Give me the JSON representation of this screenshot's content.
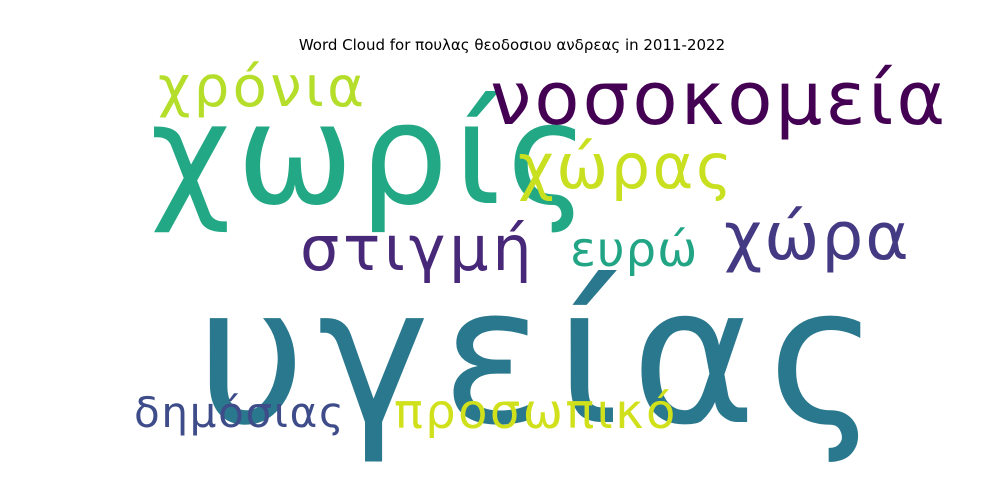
{
  "title": "Word Cloud for πουλας θεοδοσιου ανδρεας in 2011-2022",
  "words": [
    {
      "text": "υγείας",
      "color": "#2a788e"
    },
    {
      "text": "χωρίς",
      "color": "#22a884"
    },
    {
      "text": "νοσοκομεία",
      "color": "#440154"
    },
    {
      "text": "χρόνια",
      "color": "#b5de2b"
    },
    {
      "text": "χώρας",
      "color": "#c8e020"
    },
    {
      "text": "στιγμή",
      "color": "#482878"
    },
    {
      "text": "ευρώ",
      "color": "#21a585"
    },
    {
      "text": "χώρα",
      "color": "#443a83"
    },
    {
      "text": "δημόσιας",
      "color": "#3e4c8a"
    },
    {
      "text": "προσωπικό",
      "color": "#d0e11c"
    }
  ]
}
